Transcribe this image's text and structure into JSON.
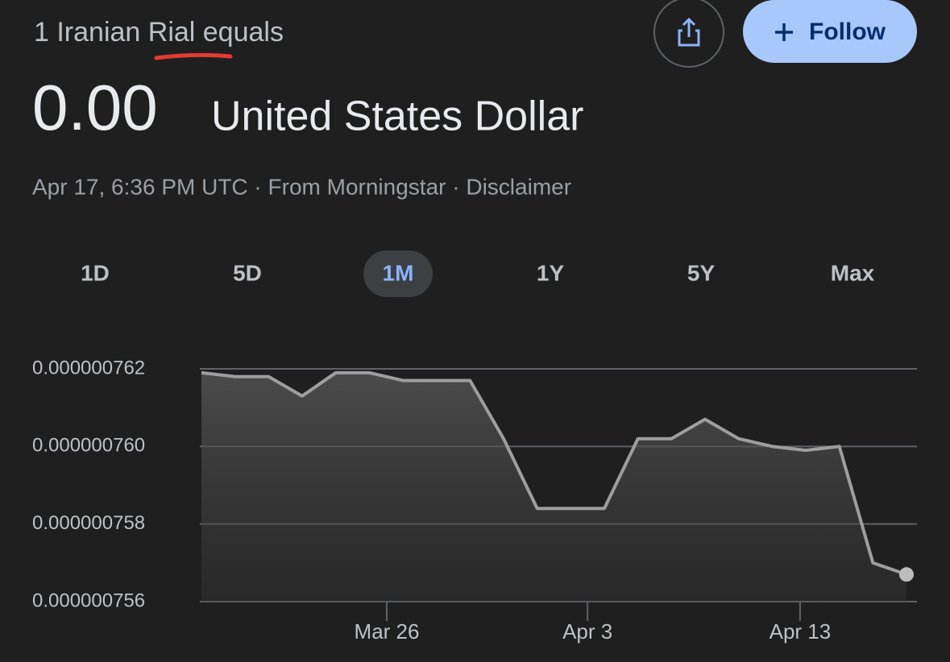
{
  "header": {
    "prefix": "1 Iranian Rial equals",
    "value": "0.00",
    "currency": "United States Dollar",
    "meta": "Apr 17, 6:36 PM UTC · From Morningstar · Disclaimer"
  },
  "buttons": {
    "follow": "Follow"
  },
  "ranges": {
    "options": [
      "1D",
      "5D",
      "1M",
      "1Y",
      "5Y",
      "Max"
    ],
    "selected": 2
  },
  "chart_data": {
    "type": "line",
    "color": "#9e9e9e",
    "grid": true,
    "x": [
      0,
      1,
      2,
      3,
      4,
      5,
      6,
      7,
      8,
      9,
      10,
      11,
      12,
      13,
      14,
      15,
      16,
      17,
      18,
      19,
      20,
      21
    ],
    "values": [
      7.619e-07,
      7.618e-07,
      7.618e-07,
      7.613e-07,
      7.619e-07,
      7.619e-07,
      7.617e-07,
      7.617e-07,
      7.617e-07,
      7.602e-07,
      7.584e-07,
      7.584e-07,
      7.584e-07,
      7.602e-07,
      7.602e-07,
      7.607e-07,
      7.602e-07,
      7.6e-07,
      7.599e-07,
      7.6e-07,
      7.57e-07,
      7.567e-07
    ],
    "xlim": [
      0,
      21
    ],
    "xticks": [
      {
        "value": 5.52,
        "label": "Mar 26"
      },
      {
        "value": 11.5,
        "label": "Apr 3"
      },
      {
        "value": 17.83,
        "label": "Apr 13"
      }
    ],
    "ylim": [
      7.56e-07,
      7.62e-07
    ],
    "yticks": [
      {
        "value": 7.56e-07,
        "label": "0.000000756"
      },
      {
        "value": 7.58e-07,
        "label": "0.000000758"
      },
      {
        "value": 7.6e-07,
        "label": "0.000000760"
      },
      {
        "value": 7.62e-07,
        "label": "0.000000762"
      }
    ]
  }
}
